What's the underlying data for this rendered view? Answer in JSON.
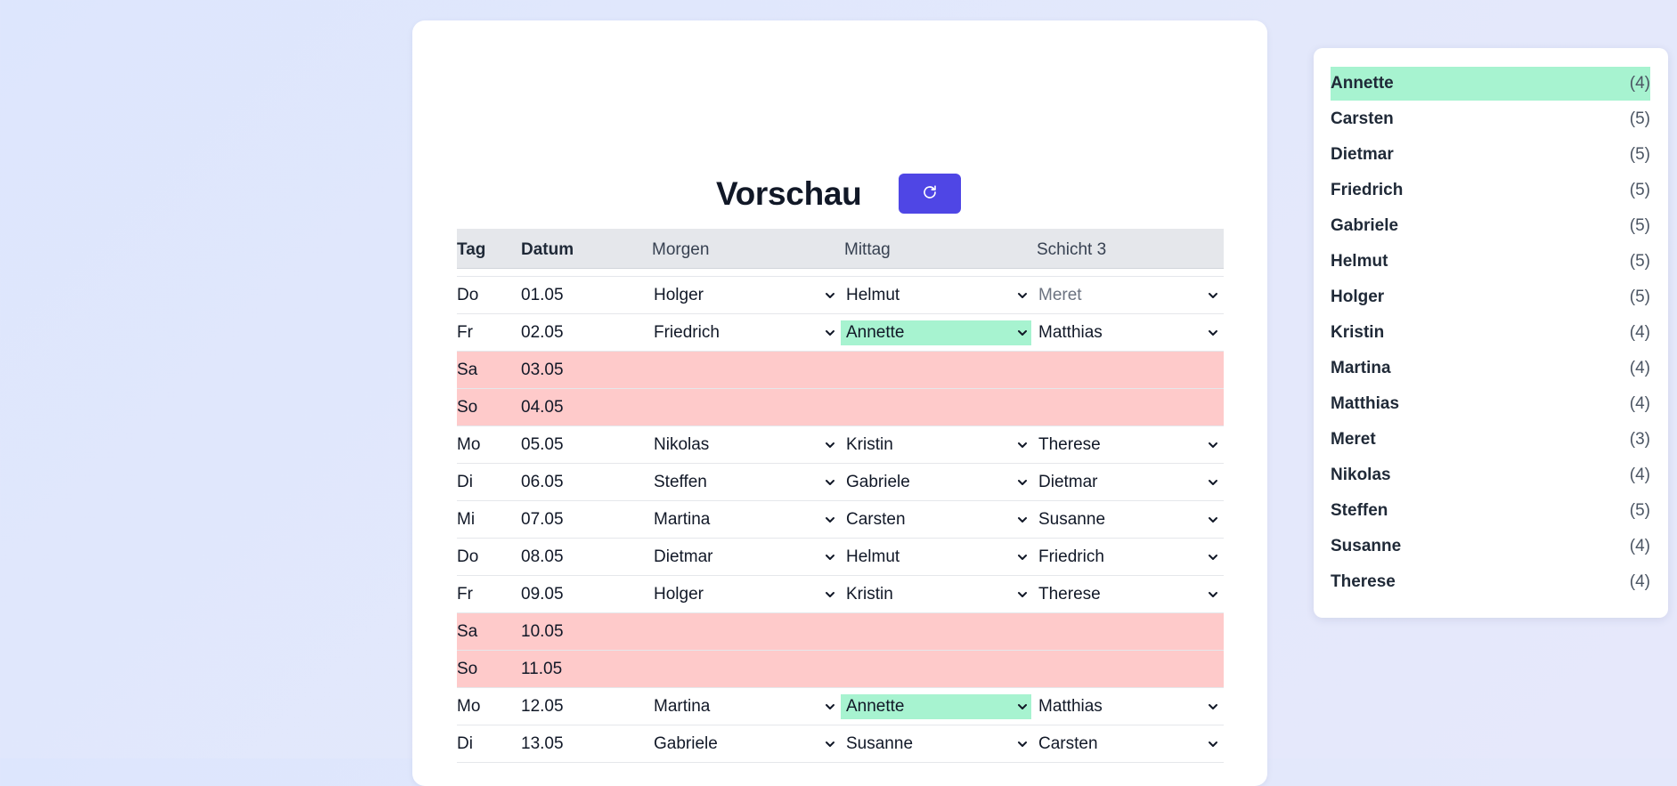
{
  "main": {
    "title": "Vorschau",
    "refresh_icon": "refresh-icon",
    "columns": [
      "Tag",
      "Datum",
      "Morgen",
      "Mittag",
      "Schicht 3"
    ],
    "rows": [
      {
        "tag": "Do",
        "datum": "01.05",
        "morgen": "Holger",
        "mittag": "Helmut",
        "schicht3": "Meret"
      },
      {
        "tag": "Fr",
        "datum": "02.05",
        "morgen": "Friedrich",
        "mittag": "Annette",
        "schicht3": "Matthias"
      },
      {
        "tag": "Sa",
        "datum": "03.05"
      },
      {
        "tag": "So",
        "datum": "04.05"
      },
      {
        "tag": "Mo",
        "datum": "05.05",
        "morgen": "Nikolas",
        "mittag": "Kristin",
        "schicht3": "Therese"
      },
      {
        "tag": "Di",
        "datum": "06.05",
        "morgen": "Steffen",
        "mittag": "Gabriele",
        "schicht3": "Dietmar"
      },
      {
        "tag": "Mi",
        "datum": "07.05",
        "morgen": "Martina",
        "mittag": "Carsten",
        "schicht3": "Susanne"
      },
      {
        "tag": "Do",
        "datum": "08.05",
        "morgen": "Dietmar",
        "mittag": "Helmut",
        "schicht3": "Friedrich"
      },
      {
        "tag": "Fr",
        "datum": "09.05",
        "morgen": "Holger",
        "mittag": "Kristin",
        "schicht3": "Therese"
      },
      {
        "tag": "Sa",
        "datum": "10.05"
      },
      {
        "tag": "So",
        "datum": "11.05"
      },
      {
        "tag": "Mo",
        "datum": "12.05",
        "morgen": "Martina",
        "mittag": "Annette",
        "schicht3": "Matthias"
      },
      {
        "tag": "Di",
        "datum": "13.05",
        "morgen": "Gabriele",
        "mittag": "Susanne",
        "schicht3": "Carsten"
      }
    ]
  },
  "sidebar": {
    "items": [
      {
        "name": "Annette",
        "count": "(4)"
      },
      {
        "name": "Carsten",
        "count": "(5)"
      },
      {
        "name": "Dietmar",
        "count": "(5)"
      },
      {
        "name": "Friedrich",
        "count": "(5)"
      },
      {
        "name": "Gabriele",
        "count": "(5)"
      },
      {
        "name": "Helmut",
        "count": "(5)"
      },
      {
        "name": "Holger",
        "count": "(5)"
      },
      {
        "name": "Kristin",
        "count": "(4)"
      },
      {
        "name": "Martina",
        "count": "(4)"
      },
      {
        "name": "Matthias",
        "count": "(4)"
      },
      {
        "name": "Meret",
        "count": "(3)"
      },
      {
        "name": "Nikolas",
        "count": "(4)"
      },
      {
        "name": "Steffen",
        "count": "(5)"
      },
      {
        "name": "Susanne",
        "count": "(4)"
      },
      {
        "name": "Therese",
        "count": "(4)"
      }
    ]
  },
  "colors": {
    "accent": "#4f46e5",
    "highlight": "#a7f3d0",
    "weekend": "#fecaca",
    "header_bg": "#e5e7eb"
  }
}
